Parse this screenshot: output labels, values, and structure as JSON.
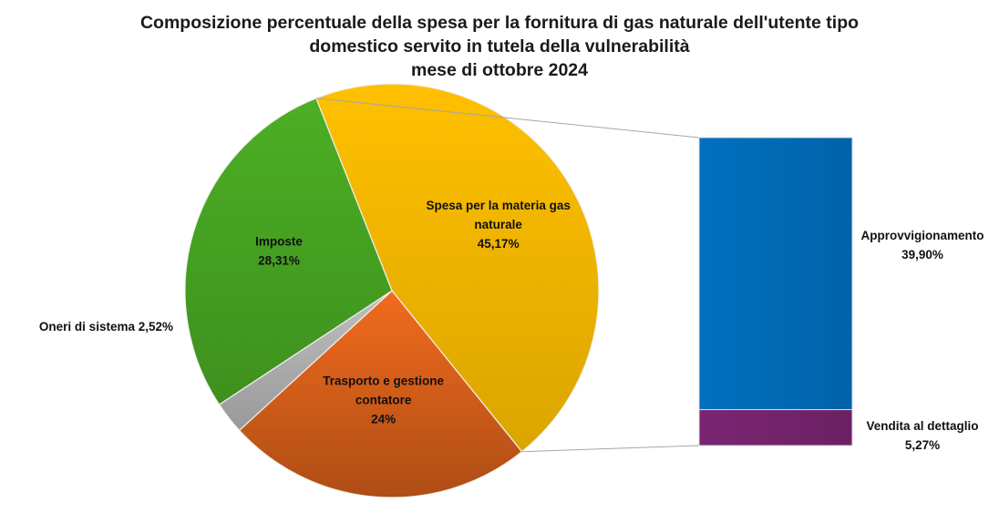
{
  "chart_data": {
    "type": "pie",
    "title_lines": [
      "Composizione percentuale della spesa per la fornitura di gas naturale dell'utente tipo",
      "domestico servito in tutela della vulnerabilità",
      "mese di ottobre 2024"
    ],
    "pie": {
      "slices": [
        {
          "name": "Spesa per la materia gas naturale",
          "value": 45.17,
          "label_lines": [
            "Spesa per la materia gas",
            "naturale",
            "45,17%"
          ],
          "color": "#FFC000"
        },
        {
          "name": "Trasporto e gestione contatore",
          "value": 24.0,
          "label_lines": [
            "Trasporto e gestione",
            "contatore",
            "24%"
          ],
          "color": "#F26B1D"
        },
        {
          "name": "Oneri di sistema",
          "value": 2.52,
          "label_lines": [
            "Oneri di sistema 2,52%"
          ],
          "color": "#BFBFBF"
        },
        {
          "name": "Imposte",
          "value": 28.31,
          "label_lines": [
            "Imposte",
            "28,31%"
          ],
          "color": "#4CAF24"
        }
      ]
    },
    "breakdown": {
      "of": "Spesa per la materia gas naturale",
      "type": "stacked-bar",
      "segments": [
        {
          "name": "Approvvigionamento",
          "value": 39.9,
          "label_lines": [
            "Approvvigionamento",
            "39,90%"
          ],
          "color": "#0070C0"
        },
        {
          "name": "Vendita al dettaglio",
          "value": 5.27,
          "label_lines": [
            "Vendita al dettaglio",
            "5,27%"
          ],
          "color": "#7B2572"
        }
      ]
    }
  }
}
